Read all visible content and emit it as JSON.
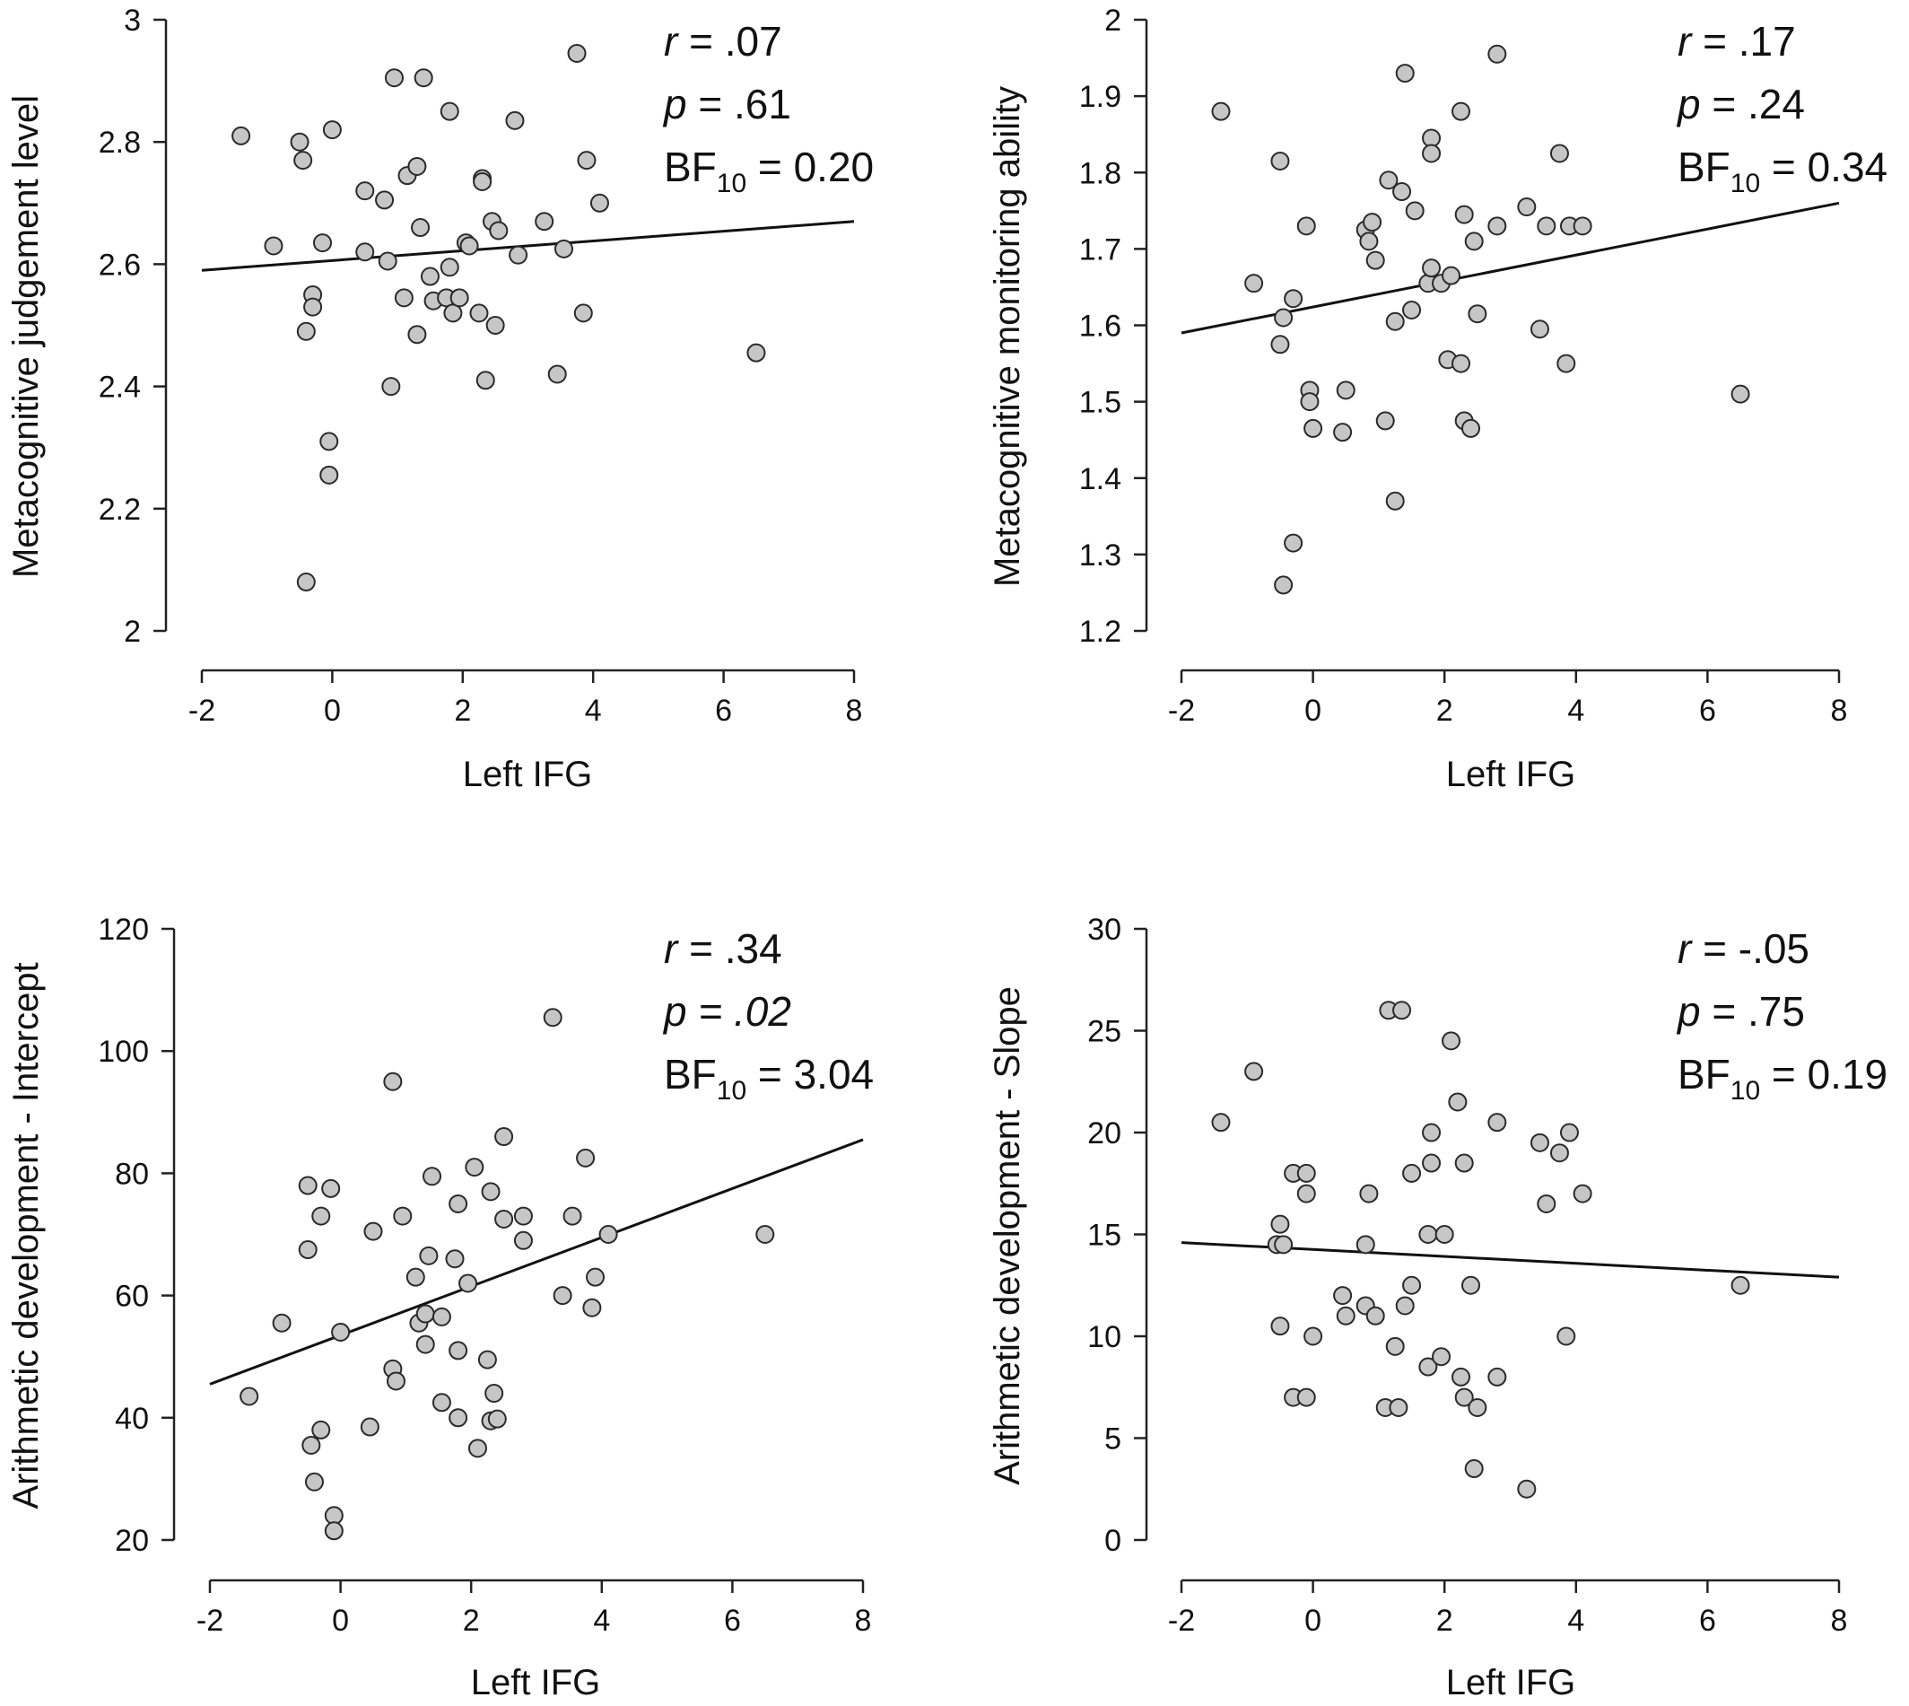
{
  "chart_data": [
    {
      "type": "scatter",
      "xlabel": "Left IFG",
      "ylabel": "Metacognitive judgement level",
      "xlim": [
        -2,
        8
      ],
      "ylim": [
        2,
        3
      ],
      "xticks": [
        -2,
        0,
        2,
        4,
        6,
        8
      ],
      "xtick_labels": [
        "-2",
        "0",
        "2",
        "4",
        "6",
        "8"
      ],
      "yticks": [
        2,
        2.2,
        2.4,
        2.6,
        2.8,
        3
      ],
      "ytick_labels": [
        "2",
        "2.2",
        "2.4",
        "2.6",
        "2.8",
        "3"
      ],
      "stats": {
        "r_label": "r",
        "r_value": " = .07",
        "p_label": "p",
        "p_value": " = .61",
        "bf_prefix": "BF",
        "bf_sub": "10",
        "bf_value": " = 0.20"
      },
      "fit_line": {
        "x": [
          -2,
          8
        ],
        "y": [
          2.59,
          2.67
        ]
      },
      "grid": false,
      "points": [
        {
          "x": -1.4,
          "y": 2.81
        },
        {
          "x": -0.9,
          "y": 2.63
        },
        {
          "x": -0.5,
          "y": 2.8
        },
        {
          "x": -0.45,
          "y": 2.77
        },
        {
          "x": -0.4,
          "y": 2.49
        },
        {
          "x": -0.3,
          "y": 2.55
        },
        {
          "x": -0.3,
          "y": 2.53
        },
        {
          "x": -0.15,
          "y": 2.635
        },
        {
          "x": -0.05,
          "y": 2.31
        },
        {
          "x": -0.05,
          "y": 2.255
        },
        {
          "x": 0.0,
          "y": 2.82
        },
        {
          "x": -0.4,
          "y": 2.08
        },
        {
          "x": 0.5,
          "y": 2.72
        },
        {
          "x": 0.5,
          "y": 2.62
        },
        {
          "x": 0.8,
          "y": 2.705
        },
        {
          "x": 0.85,
          "y": 2.605
        },
        {
          "x": 0.9,
          "y": 2.4
        },
        {
          "x": 0.95,
          "y": 2.905
        },
        {
          "x": 1.1,
          "y": 2.545
        },
        {
          "x": 1.15,
          "y": 2.745
        },
        {
          "x": 1.3,
          "y": 2.76
        },
        {
          "x": 1.35,
          "y": 2.66
        },
        {
          "x": 1.3,
          "y": 2.485
        },
        {
          "x": 1.4,
          "y": 2.905
        },
        {
          "x": 1.5,
          "y": 2.58
        },
        {
          "x": 1.55,
          "y": 2.54
        },
        {
          "x": 1.75,
          "y": 2.545
        },
        {
          "x": 1.8,
          "y": 2.85
        },
        {
          "x": 1.8,
          "y": 2.595
        },
        {
          "x": 1.85,
          "y": 2.52
        },
        {
          "x": 1.95,
          "y": 2.545
        },
        {
          "x": 2.05,
          "y": 2.635
        },
        {
          "x": 2.1,
          "y": 2.63
        },
        {
          "x": 2.25,
          "y": 2.52
        },
        {
          "x": 2.3,
          "y": 2.74
        },
        {
          "x": 2.3,
          "y": 2.735
        },
        {
          "x": 2.35,
          "y": 2.41
        },
        {
          "x": 2.45,
          "y": 2.67
        },
        {
          "x": 2.5,
          "y": 2.5
        },
        {
          "x": 2.55,
          "y": 2.655
        },
        {
          "x": 2.8,
          "y": 2.835
        },
        {
          "x": 2.85,
          "y": 2.615
        },
        {
          "x": 3.25,
          "y": 2.67
        },
        {
          "x": 3.45,
          "y": 2.42
        },
        {
          "x": 3.55,
          "y": 2.625
        },
        {
          "x": 3.75,
          "y": 2.945
        },
        {
          "x": 3.85,
          "y": 2.52
        },
        {
          "x": 3.9,
          "y": 2.77
        },
        {
          "x": 4.1,
          "y": 2.7
        },
        {
          "x": 6.5,
          "y": 2.455
        }
      ]
    },
    {
      "type": "scatter",
      "xlabel": "Left IFG",
      "ylabel": "Metacognitive monitoring ability",
      "xlim": [
        -2,
        8
      ],
      "ylim": [
        1.2,
        2
      ],
      "xticks": [
        -2,
        0,
        2,
        4,
        6,
        8
      ],
      "xtick_labels": [
        "-2",
        "0",
        "2",
        "4",
        "6",
        "8"
      ],
      "yticks": [
        1.2,
        1.3,
        1.4,
        1.5,
        1.6,
        1.7,
        1.8,
        1.9,
        2
      ],
      "ytick_labels": [
        "1.2",
        "1.3",
        "1.4",
        "1.5",
        "1.6",
        "1.7",
        "1.8",
        "1.9",
        "2"
      ],
      "stats": {
        "r_label": "r",
        "r_value": " = .17",
        "p_label": "p",
        "p_value": " = .24",
        "bf_prefix": "BF",
        "bf_sub": "10",
        "bf_value": " = 0.34"
      },
      "fit_line": {
        "x": [
          -2,
          8
        ],
        "y": [
          1.59,
          1.76
        ]
      },
      "grid": false,
      "points": [
        {
          "x": -1.4,
          "y": 1.88
        },
        {
          "x": -0.9,
          "y": 1.655
        },
        {
          "x": -0.5,
          "y": 1.815
        },
        {
          "x": -0.5,
          "y": 1.575
        },
        {
          "x": -0.45,
          "y": 1.61
        },
        {
          "x": -0.3,
          "y": 1.635
        },
        {
          "x": -0.3,
          "y": 1.315
        },
        {
          "x": -0.45,
          "y": 1.26
        },
        {
          "x": -0.1,
          "y": 1.73
        },
        {
          "x": -0.05,
          "y": 1.515
        },
        {
          "x": -0.05,
          "y": 1.5
        },
        {
          "x": 0.0,
          "y": 1.465
        },
        {
          "x": 0.45,
          "y": 1.46
        },
        {
          "x": 0.5,
          "y": 1.515
        },
        {
          "x": 0.8,
          "y": 1.725
        },
        {
          "x": 0.85,
          "y": 1.71
        },
        {
          "x": 0.9,
          "y": 1.735
        },
        {
          "x": 0.95,
          "y": 1.685
        },
        {
          "x": 1.1,
          "y": 1.475
        },
        {
          "x": 1.15,
          "y": 1.79
        },
        {
          "x": 1.25,
          "y": 1.605
        },
        {
          "x": 1.25,
          "y": 1.37
        },
        {
          "x": 1.35,
          "y": 1.775
        },
        {
          "x": 1.4,
          "y": 1.93
        },
        {
          "x": 1.5,
          "y": 1.62
        },
        {
          "x": 1.55,
          "y": 1.75
        },
        {
          "x": 1.75,
          "y": 1.655
        },
        {
          "x": 1.8,
          "y": 1.845
        },
        {
          "x": 1.8,
          "y": 1.675
        },
        {
          "x": 1.8,
          "y": 1.825
        },
        {
          "x": 1.95,
          "y": 1.655
        },
        {
          "x": 2.05,
          "y": 1.555
        },
        {
          "x": 2.1,
          "y": 1.665
        },
        {
          "x": 2.25,
          "y": 1.55
        },
        {
          "x": 2.25,
          "y": 1.88
        },
        {
          "x": 2.3,
          "y": 1.745
        },
        {
          "x": 2.3,
          "y": 1.475
        },
        {
          "x": 2.4,
          "y": 1.465
        },
        {
          "x": 2.45,
          "y": 1.71
        },
        {
          "x": 2.5,
          "y": 1.615
        },
        {
          "x": 2.8,
          "y": 1.955
        },
        {
          "x": 2.8,
          "y": 1.73
        },
        {
          "x": 3.25,
          "y": 1.755
        },
        {
          "x": 3.45,
          "y": 1.595
        },
        {
          "x": 3.55,
          "y": 1.73
        },
        {
          "x": 3.75,
          "y": 1.825
        },
        {
          "x": 3.85,
          "y": 1.55
        },
        {
          "x": 3.9,
          "y": 1.73
        },
        {
          "x": 4.1,
          "y": 1.73
        },
        {
          "x": 6.5,
          "y": 1.51
        }
      ]
    },
    {
      "type": "scatter",
      "xlabel": "Left IFG",
      "ylabel": "Arithmetic development - Intercept",
      "xlim": [
        -2,
        8
      ],
      "ylim": [
        20,
        120
      ],
      "xticks": [
        -2,
        0,
        2,
        4,
        6,
        8
      ],
      "xtick_labels": [
        "-2",
        "0",
        "2",
        "4",
        "6",
        "8"
      ],
      "yticks": [
        20,
        40,
        60,
        80,
        100,
        120
      ],
      "ytick_labels": [
        "20",
        "40",
        "60",
        "80",
        "100",
        "120"
      ],
      "stats": {
        "r_label": "r",
        "r_value": " = .34",
        "p_label": "p",
        "p_value": " = .02",
        "bf_prefix": "BF",
        "bf_sub": "10",
        "bf_value": " = 3.04"
      },
      "fit_line": {
        "x": [
          -2,
          8
        ],
        "y": [
          45.5,
          85.5
        ]
      },
      "grid": false,
      "points": [
        {
          "x": -1.4,
          "y": 43.5
        },
        {
          "x": -0.9,
          "y": 55.5
        },
        {
          "x": -0.5,
          "y": 78
        },
        {
          "x": -0.5,
          "y": 67.5
        },
        {
          "x": -0.45,
          "y": 35.5
        },
        {
          "x": -0.4,
          "y": 29.5
        },
        {
          "x": -0.3,
          "y": 73
        },
        {
          "x": -0.3,
          "y": 38
        },
        {
          "x": -0.15,
          "y": 77.5
        },
        {
          "x": -0.1,
          "y": 24
        },
        {
          "x": -0.1,
          "y": 21.5
        },
        {
          "x": 0.0,
          "y": 54
        },
        {
          "x": 0.45,
          "y": 38.5
        },
        {
          "x": 0.5,
          "y": 70.5
        },
        {
          "x": 0.8,
          "y": 95
        },
        {
          "x": 0.8,
          "y": 48
        },
        {
          "x": 0.85,
          "y": 46
        },
        {
          "x": 0.95,
          "y": 73
        },
        {
          "x": 1.15,
          "y": 63
        },
        {
          "x": 1.2,
          "y": 55.5
        },
        {
          "x": 1.3,
          "y": 57
        },
        {
          "x": 1.3,
          "y": 52
        },
        {
          "x": 1.35,
          "y": 66.5
        },
        {
          "x": 1.4,
          "y": 79.5
        },
        {
          "x": 1.55,
          "y": 56.5
        },
        {
          "x": 1.55,
          "y": 42.5
        },
        {
          "x": 1.75,
          "y": 66
        },
        {
          "x": 1.8,
          "y": 75
        },
        {
          "x": 1.8,
          "y": 51
        },
        {
          "x": 1.8,
          "y": 40
        },
        {
          "x": 1.95,
          "y": 62
        },
        {
          "x": 2.05,
          "y": 81
        },
        {
          "x": 2.1,
          "y": 35
        },
        {
          "x": 2.25,
          "y": 49.5
        },
        {
          "x": 2.3,
          "y": 77
        },
        {
          "x": 2.3,
          "y": 39.5
        },
        {
          "x": 2.35,
          "y": 44
        },
        {
          "x": 2.4,
          "y": 39.8
        },
        {
          "x": 2.5,
          "y": 86
        },
        {
          "x": 2.5,
          "y": 72.5
        },
        {
          "x": 2.8,
          "y": 73
        },
        {
          "x": 2.8,
          "y": 69
        },
        {
          "x": 3.25,
          "y": 105.5
        },
        {
          "x": 3.4,
          "y": 60
        },
        {
          "x": 3.55,
          "y": 73
        },
        {
          "x": 3.75,
          "y": 82.5
        },
        {
          "x": 3.85,
          "y": 58
        },
        {
          "x": 3.9,
          "y": 63
        },
        {
          "x": 4.1,
          "y": 70
        },
        {
          "x": 6.5,
          "y": 70
        }
      ]
    },
    {
      "type": "scatter",
      "xlabel": "Left IFG",
      "ylabel": "Arithmetic development - Slope",
      "xlim": [
        -2,
        8
      ],
      "ylim": [
        0,
        30
      ],
      "xticks": [
        -2,
        0,
        2,
        4,
        6,
        8
      ],
      "xtick_labels": [
        "-2",
        "0",
        "2",
        "4",
        "6",
        "8"
      ],
      "yticks": [
        0,
        5,
        10,
        15,
        20,
        25,
        30
      ],
      "ytick_labels": [
        "0",
        "5",
        "10",
        "15",
        "20",
        "25",
        "30"
      ],
      "stats": {
        "r_label": "r",
        "r_value": " = -.05",
        "p_label": "p",
        "p_value": " = .75",
        "bf_prefix": "BF",
        "bf_sub": "10",
        "bf_value": " = 0.19"
      },
      "fit_line": {
        "x": [
          -2,
          8
        ],
        "y": [
          14.6,
          12.9
        ]
      },
      "grid": false,
      "points": [
        {
          "x": -1.4,
          "y": 20.5
        },
        {
          "x": -0.9,
          "y": 23
        },
        {
          "x": -0.55,
          "y": 14.5
        },
        {
          "x": -0.5,
          "y": 15.5
        },
        {
          "x": -0.45,
          "y": 14.5
        },
        {
          "x": -0.5,
          "y": 10.5
        },
        {
          "x": -0.3,
          "y": 18
        },
        {
          "x": -0.3,
          "y": 7
        },
        {
          "x": -0.1,
          "y": 18
        },
        {
          "x": -0.1,
          "y": 17
        },
        {
          "x": -0.1,
          "y": 7
        },
        {
          "x": 0.0,
          "y": 10
        },
        {
          "x": 0.45,
          "y": 12
        },
        {
          "x": 0.5,
          "y": 11
        },
        {
          "x": 0.8,
          "y": 14.5
        },
        {
          "x": 0.8,
          "y": 11.5
        },
        {
          "x": 0.85,
          "y": 17
        },
        {
          "x": 0.95,
          "y": 11
        },
        {
          "x": 1.1,
          "y": 6.5
        },
        {
          "x": 1.15,
          "y": 26
        },
        {
          "x": 1.25,
          "y": 9.5
        },
        {
          "x": 1.3,
          "y": 6.5
        },
        {
          "x": 1.35,
          "y": 26
        },
        {
          "x": 1.4,
          "y": 11.5
        },
        {
          "x": 1.5,
          "y": 12.5
        },
        {
          "x": 1.5,
          "y": 18
        },
        {
          "x": 1.75,
          "y": 8.5
        },
        {
          "x": 1.75,
          "y": 15
        },
        {
          "x": 1.8,
          "y": 20
        },
        {
          "x": 1.8,
          "y": 18.5
        },
        {
          "x": 1.95,
          "y": 9
        },
        {
          "x": 2.0,
          "y": 15
        },
        {
          "x": 2.1,
          "y": 24.5
        },
        {
          "x": 2.2,
          "y": 21.5
        },
        {
          "x": 2.25,
          "y": 8
        },
        {
          "x": 2.3,
          "y": 18.5
        },
        {
          "x": 2.3,
          "y": 7
        },
        {
          "x": 2.4,
          "y": 12.5
        },
        {
          "x": 2.45,
          "y": 3.5
        },
        {
          "x": 2.5,
          "y": 6.5
        },
        {
          "x": 2.8,
          "y": 20.5
        },
        {
          "x": 2.8,
          "y": 8
        },
        {
          "x": 3.25,
          "y": 2.5
        },
        {
          "x": 3.45,
          "y": 19.5
        },
        {
          "x": 3.55,
          "y": 16.5
        },
        {
          "x": 3.75,
          "y": 19
        },
        {
          "x": 3.85,
          "y": 10
        },
        {
          "x": 3.9,
          "y": 20
        },
        {
          "x": 4.1,
          "y": 17
        },
        {
          "x": 6.5,
          "y": 12.5
        }
      ]
    }
  ]
}
